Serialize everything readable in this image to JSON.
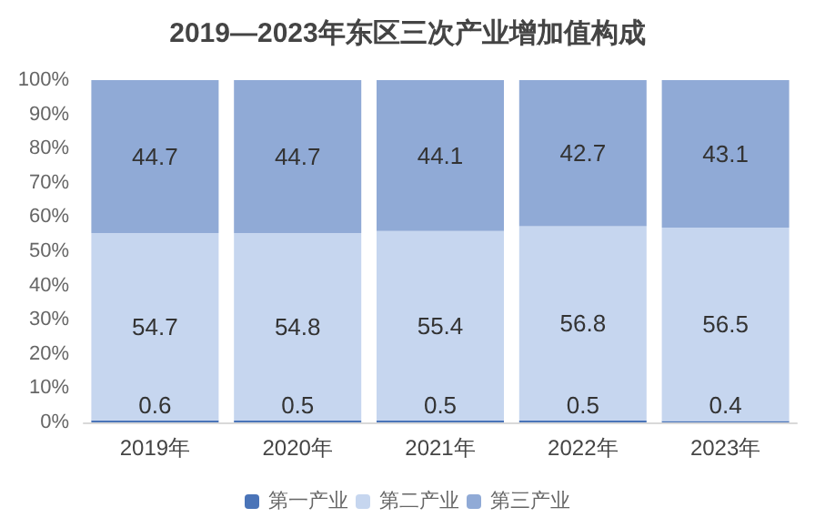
{
  "chart_data": {
    "type": "bar",
    "title": "2019—2023年东区三次产业增加值构成",
    "categories": [
      "2019年",
      "2020年",
      "2021年",
      "2022年",
      "2023年"
    ],
    "stacked": true,
    "data_labels": true,
    "grid": false,
    "legend": "bottom",
    "ylim": [
      0,
      100
    ],
    "yticks": [
      {
        "value": 0,
        "label": "0%"
      },
      {
        "value": 10,
        "label": "10%"
      },
      {
        "value": 20,
        "label": "20%"
      },
      {
        "value": 30,
        "label": "30%"
      },
      {
        "value": 40,
        "label": "40%"
      },
      {
        "value": 50,
        "label": "50%"
      },
      {
        "value": 60,
        "label": "60%"
      },
      {
        "value": 70,
        "label": "70%"
      },
      {
        "value": 80,
        "label": "80%"
      },
      {
        "value": 90,
        "label": "90%"
      },
      {
        "value": 100,
        "label": "100%"
      }
    ],
    "series": [
      {
        "name": "第一产业",
        "color": "#4a74b8",
        "values": [
          0.6,
          0.5,
          0.5,
          0.5,
          0.4
        ]
      },
      {
        "name": "第二产业",
        "color": "#c6d6ef",
        "values": [
          54.7,
          54.8,
          55.4,
          56.8,
          56.5
        ]
      },
      {
        "name": "第三产业",
        "color": "#90aad6",
        "values": [
          44.7,
          44.7,
          44.1,
          42.7,
          43.1
        ]
      }
    ]
  }
}
